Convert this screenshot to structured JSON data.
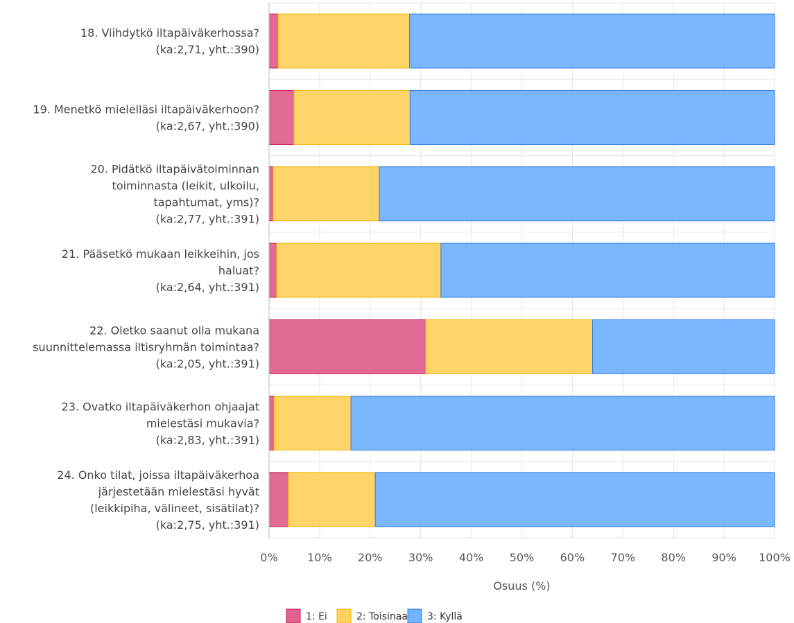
{
  "chart_data": {
    "type": "bar",
    "orientation": "horizontal",
    "stacked": true,
    "categories": [
      [
        "18. Viihdytkö iltapäiväkerhossa?",
        "(ka:2,71, yht.:390)"
      ],
      [
        "19. Menetkö mielelläsi iltapäiväkerhoon?",
        "(ka:2,67, yht.:390)"
      ],
      [
        "20. Pidätkö iltapäivätoiminnan",
        "toiminnasta (leikit, ulkoilu,",
        "tapahtumat, yms)?",
        "(ka:2,77, yht.:391)"
      ],
      [
        "21. Pääsetkö mukaan leikkeihin, jos",
        "haluat?",
        "(ka:2,64, yht.:391)"
      ],
      [
        "22. Oletko saanut olla mukana",
        "suunnittelemassa iltisryhmän toimintaa?",
        "(ka:2,05, yht.:391)"
      ],
      [
        "23. Ovatko iltapäiväkerhon ohjaajat",
        "mielestäsi mukavia?",
        "(ka:2,83, yht.:391)"
      ],
      [
        "24. Onko tilat, joissa iltapäiväkerhoa",
        "järjestetään mielestäsi hyvät",
        "(leikkipiha, välineet, sisätilat)?",
        "(ka:2,75, yht.:391)"
      ]
    ],
    "series": [
      {
        "name": "1: Ei",
        "color": "#e0628f",
        "values": [
          1.8,
          4.9,
          0.8,
          1.5,
          31,
          1.0,
          3.8
        ]
      },
      {
        "name": "2: Toisinaan",
        "color": "#ffd362",
        "values": [
          26,
          23,
          21,
          32.5,
          33,
          15.2,
          17.2
        ]
      },
      {
        "name": "3: Kyllä",
        "color": "#74b3ff",
        "values": [
          72.2,
          72.1,
          78.2,
          66,
          36,
          83.8,
          79
        ]
      }
    ],
    "xlabel": "Osuus (%)",
    "xlim": [
      0,
      100
    ],
    "xticks": [
      0,
      10,
      20,
      30,
      40,
      50,
      60,
      70,
      80,
      90,
      100
    ],
    "tick_suffix": "%",
    "grid": true,
    "legend_position": "bottom-center"
  }
}
